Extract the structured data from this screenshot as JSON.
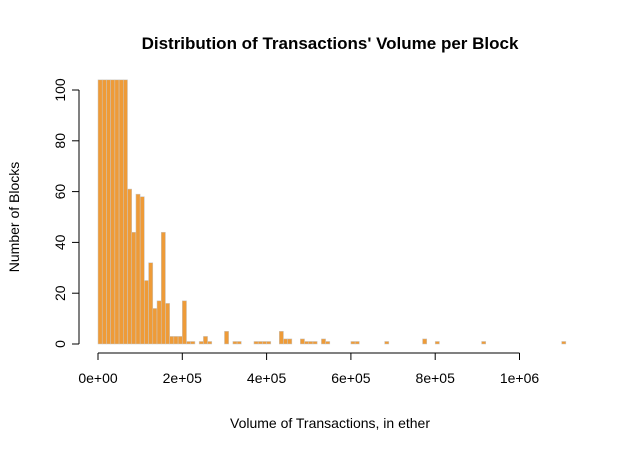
{
  "chart_data": {
    "type": "bar",
    "title": "Distribution of Transactions' Volume per Block",
    "xlabel": "Volume of Transactions, in ether",
    "ylabel": "Number of Blocks",
    "bin_width": 10000,
    "xlim": [
      0,
      1110000
    ],
    "ylim": [
      0,
      104
    ],
    "x_ticks": [
      0,
      200000,
      400000,
      600000,
      800000,
      1000000
    ],
    "x_tick_labels": [
      "0e+00",
      "2e+05",
      "4e+05",
      "6e+05",
      "8e+05",
      "1e+06"
    ],
    "y_ticks": [
      0,
      20,
      40,
      60,
      80,
      100
    ],
    "y_tick_labels": [
      "0",
      "20",
      "40",
      "60",
      "80",
      "100"
    ],
    "bar_color": "#ee9b38",
    "bar_border_color": "#c8c8c8",
    "bins_start": [
      0,
      10000,
      20000,
      30000,
      40000,
      50000,
      60000,
      70000,
      80000,
      90000,
      100000,
      110000,
      120000,
      130000,
      140000,
      150000,
      160000,
      170000,
      180000,
      190000,
      200000,
      210000,
      220000,
      230000,
      240000,
      250000,
      260000,
      270000,
      280000,
      290000,
      300000,
      310000,
      320000,
      330000,
      340000,
      350000,
      360000,
      370000,
      380000,
      390000,
      400000,
      410000,
      420000,
      430000,
      440000,
      450000,
      460000,
      470000,
      480000,
      490000,
      500000,
      510000,
      520000,
      530000,
      540000,
      550000,
      560000,
      570000,
      580000,
      590000,
      600000,
      610000,
      620000,
      630000,
      640000,
      650000,
      660000,
      670000,
      680000,
      690000,
      700000,
      710000,
      720000,
      730000,
      740000,
      750000,
      760000,
      770000,
      780000,
      790000,
      800000,
      810000,
      820000,
      830000,
      840000,
      850000,
      860000,
      870000,
      880000,
      890000,
      900000,
      910000,
      920000,
      930000,
      940000,
      950000,
      960000,
      970000,
      980000,
      990000,
      1000000,
      1010000,
      1020000,
      1030000,
      1040000,
      1050000,
      1060000,
      1070000,
      1080000,
      1090000,
      1100000
    ],
    "values": [
      104,
      104,
      104,
      104,
      104,
      104,
      104,
      61,
      44,
      59,
      58,
      25,
      32,
      14,
      17,
      44,
      16,
      3,
      3,
      3,
      17,
      1,
      1,
      0,
      1,
      3,
      1,
      0,
      0,
      0,
      5,
      0,
      1,
      1,
      0,
      0,
      0,
      1,
      1,
      1,
      1,
      0,
      0,
      5,
      2,
      2,
      0,
      0,
      2,
      1,
      1,
      1,
      0,
      2,
      1,
      0,
      0,
      0,
      0,
      0,
      1,
      1,
      0,
      0,
      0,
      0,
      0,
      0,
      1,
      0,
      0,
      0,
      0,
      0,
      0,
      0,
      0,
      2,
      0,
      0,
      1,
      0,
      0,
      0,
      0,
      0,
      0,
      0,
      0,
      0,
      0,
      1,
      0,
      0,
      0,
      0,
      0,
      0,
      0,
      0,
      0,
      0,
      0,
      0,
      0,
      0,
      0,
      0,
      0,
      0,
      1
    ]
  }
}
